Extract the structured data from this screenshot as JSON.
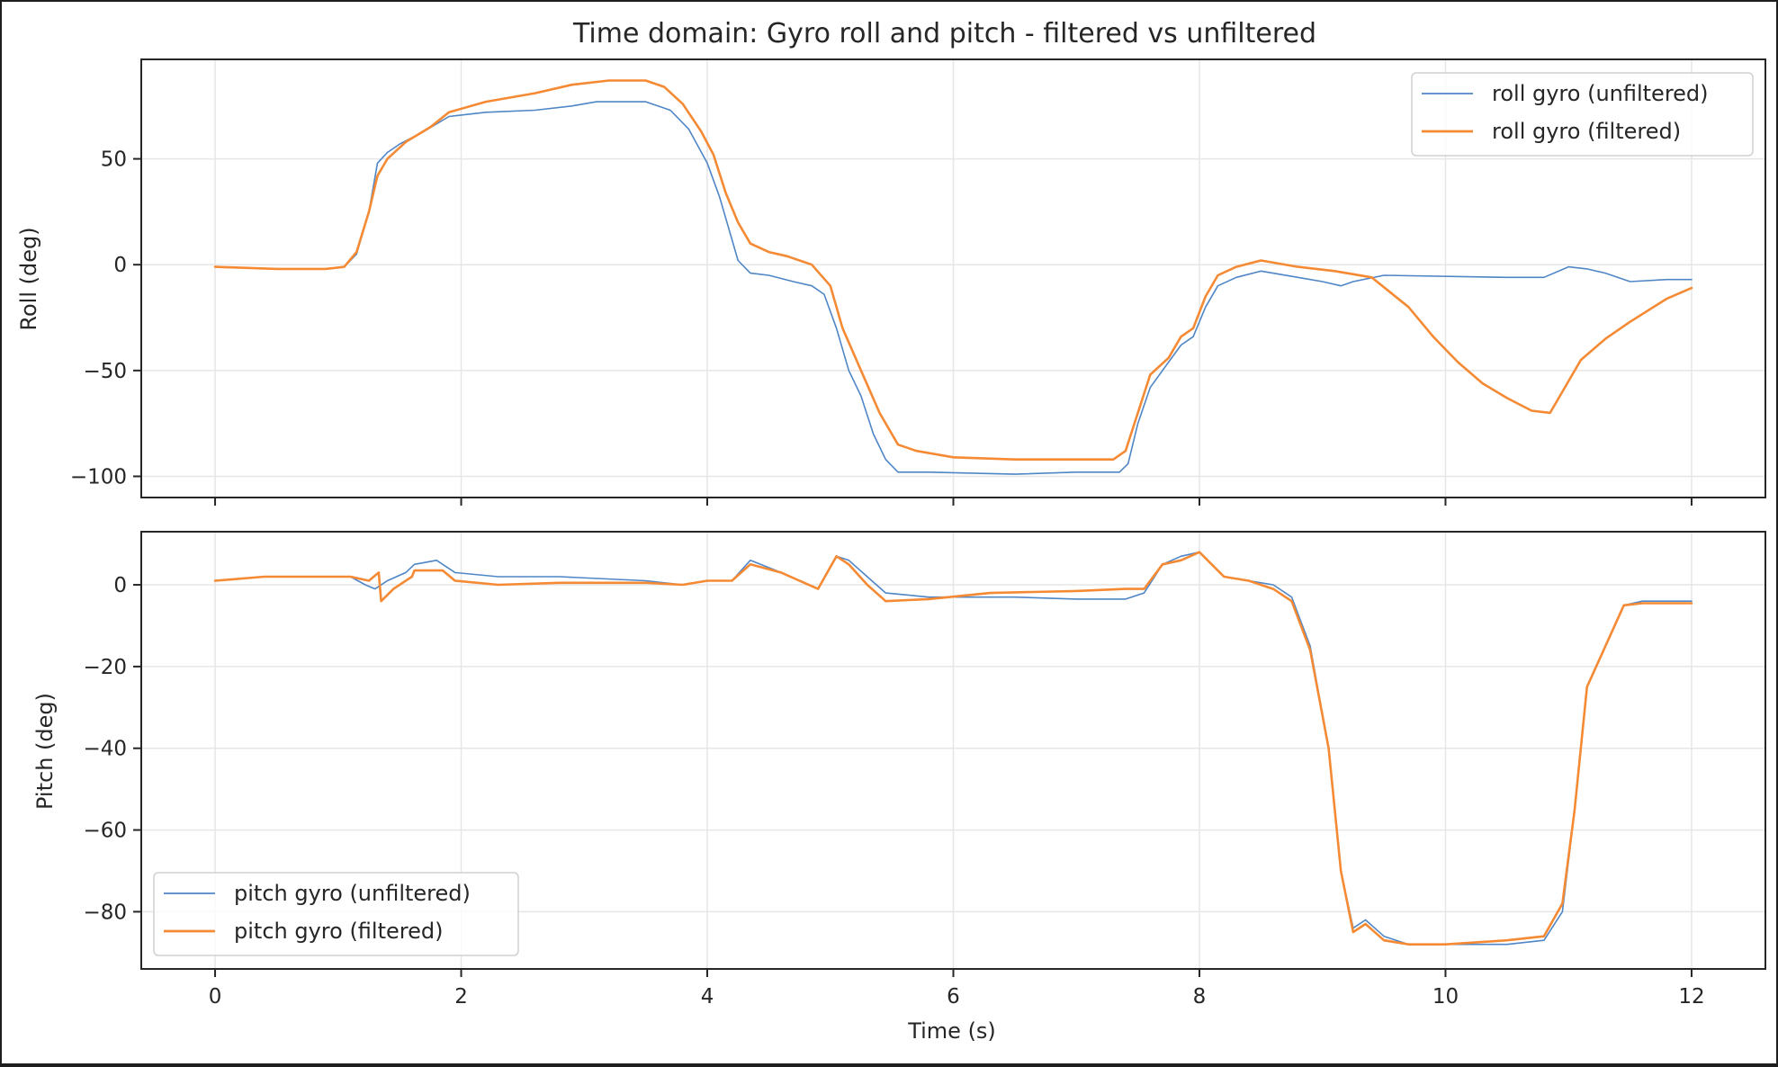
{
  "figure": {
    "title": "Time domain: Gyro roll and pitch - filtered vs unfiltered",
    "xlabel": "Time (s)",
    "colors": {
      "unfiltered": "#4f86c6",
      "filtered": "#f58a35"
    }
  },
  "chart_data": [
    {
      "type": "line",
      "title": "Time domain: Gyro roll and pitch - filtered vs unfiltered",
      "xlabel": "",
      "ylabel": "Roll (deg)",
      "xlim": [
        -0.6,
        12.6
      ],
      "ylim": [
        -110,
        97
      ],
      "xticks": [
        0,
        2,
        4,
        6,
        8,
        10,
        12
      ],
      "yticks": [
        -100,
        -50,
        0,
        50
      ],
      "ytick_labels": [
        "−100",
        "−50",
        "0",
        "50"
      ],
      "grid": true,
      "legend_position": "upper right",
      "series": [
        {
          "name": "roll gyro (unfiltered)",
          "color": "#4f86c6",
          "width": 1.6,
          "points": [
            [
              0,
              -1
            ],
            [
              0.5,
              -2
            ],
            [
              0.9,
              -2
            ],
            [
              1.05,
              -1
            ],
            [
              1.15,
              5
            ],
            [
              1.25,
              25
            ],
            [
              1.32,
              48
            ],
            [
              1.4,
              53
            ],
            [
              1.5,
              57
            ],
            [
              1.7,
              63
            ],
            [
              1.9,
              70
            ],
            [
              2.2,
              72
            ],
            [
              2.6,
              73
            ],
            [
              2.9,
              75
            ],
            [
              3.1,
              77
            ],
            [
              3.5,
              77
            ],
            [
              3.7,
              73
            ],
            [
              3.85,
              64
            ],
            [
              4.0,
              48
            ],
            [
              4.1,
              32
            ],
            [
              4.2,
              12
            ],
            [
              4.25,
              2
            ],
            [
              4.35,
              -4
            ],
            [
              4.5,
              -5
            ],
            [
              4.7,
              -8
            ],
            [
              4.85,
              -10
            ],
            [
              4.95,
              -14
            ],
            [
              5.05,
              -30
            ],
            [
              5.15,
              -50
            ],
            [
              5.25,
              -62
            ],
            [
              5.35,
              -80
            ],
            [
              5.45,
              -92
            ],
            [
              5.55,
              -98
            ],
            [
              5.8,
              -98
            ],
            [
              6.5,
              -99
            ],
            [
              7.0,
              -98
            ],
            [
              7.35,
              -98
            ],
            [
              7.42,
              -94
            ],
            [
              7.5,
              -75
            ],
            [
              7.6,
              -58
            ],
            [
              7.75,
              -46
            ],
            [
              7.85,
              -38
            ],
            [
              7.95,
              -34
            ],
            [
              8.05,
              -20
            ],
            [
              8.15,
              -10
            ],
            [
              8.3,
              -6
            ],
            [
              8.5,
              -3
            ],
            [
              8.8,
              -6
            ],
            [
              9.0,
              -8
            ],
            [
              9.15,
              -10
            ],
            [
              9.25,
              -8
            ],
            [
              9.5,
              -5
            ],
            [
              10.5,
              -6
            ],
            [
              10.8,
              -6
            ],
            [
              11.0,
              -1
            ],
            [
              11.15,
              -2
            ],
            [
              11.3,
              -4
            ],
            [
              11.5,
              -8
            ],
            [
              11.8,
              -7
            ],
            [
              12,
              -7
            ]
          ]
        },
        {
          "name": "roll gyro (filtered)",
          "color": "#f58a35",
          "width": 2.6,
          "points": [
            [
              0,
              -1
            ],
            [
              0.5,
              -2
            ],
            [
              0.9,
              -2
            ],
            [
              1.05,
              -1
            ],
            [
              1.15,
              6
            ],
            [
              1.25,
              25
            ],
            [
              1.32,
              42
            ],
            [
              1.4,
              50
            ],
            [
              1.55,
              58
            ],
            [
              1.75,
              65
            ],
            [
              1.9,
              72
            ],
            [
              2.2,
              77
            ],
            [
              2.6,
              81
            ],
            [
              2.9,
              85
            ],
            [
              3.2,
              87
            ],
            [
              3.5,
              87
            ],
            [
              3.65,
              84
            ],
            [
              3.8,
              76
            ],
            [
              3.95,
              63
            ],
            [
              4.05,
              52
            ],
            [
              4.15,
              34
            ],
            [
              4.25,
              20
            ],
            [
              4.35,
              10
            ],
            [
              4.5,
              6
            ],
            [
              4.65,
              4
            ],
            [
              4.85,
              0
            ],
            [
              5.0,
              -10
            ],
            [
              5.1,
              -30
            ],
            [
              5.25,
              -50
            ],
            [
              5.4,
              -70
            ],
            [
              5.55,
              -85
            ],
            [
              5.7,
              -88
            ],
            [
              6.0,
              -91
            ],
            [
              6.5,
              -92
            ],
            [
              7.0,
              -92
            ],
            [
              7.3,
              -92
            ],
            [
              7.4,
              -88
            ],
            [
              7.5,
              -70
            ],
            [
              7.6,
              -52
            ],
            [
              7.75,
              -44
            ],
            [
              7.85,
              -34
            ],
            [
              7.95,
              -30
            ],
            [
              8.05,
              -15
            ],
            [
              8.15,
              -5
            ],
            [
              8.3,
              -1
            ],
            [
              8.5,
              2
            ],
            [
              8.8,
              -1
            ],
            [
              9.1,
              -3
            ],
            [
              9.4,
              -6
            ],
            [
              9.7,
              -20
            ],
            [
              9.9,
              -34
            ],
            [
              10.1,
              -46
            ],
            [
              10.3,
              -56
            ],
            [
              10.5,
              -63
            ],
            [
              10.7,
              -69
            ],
            [
              10.85,
              -70
            ],
            [
              10.95,
              -60
            ],
            [
              11.1,
              -45
            ],
            [
              11.3,
              -35
            ],
            [
              11.5,
              -27
            ],
            [
              11.8,
              -16
            ],
            [
              12,
              -11
            ]
          ]
        }
      ]
    },
    {
      "type": "line",
      "xlabel": "Time (s)",
      "ylabel": "Pitch (deg)",
      "xlim": [
        -0.6,
        12.6
      ],
      "ylim": [
        -94,
        13
      ],
      "xticks": [
        0,
        2,
        4,
        6,
        8,
        10,
        12
      ],
      "xtick_labels": [
        "0",
        "2",
        "4",
        "6",
        "8",
        "10",
        "12"
      ],
      "yticks": [
        -80,
        -60,
        -40,
        -20,
        0
      ],
      "ytick_labels": [
        "−80",
        "−60",
        "−40",
        "−20",
        "0"
      ],
      "grid": true,
      "legend_position": "lower left",
      "series": [
        {
          "name": "pitch gyro (unfiltered)",
          "color": "#4f86c6",
          "width": 1.6,
          "points": [
            [
              0,
              1
            ],
            [
              0.4,
              2
            ],
            [
              0.8,
              2
            ],
            [
              1.1,
              2
            ],
            [
              1.22,
              0
            ],
            [
              1.3,
              -1
            ],
            [
              1.4,
              1
            ],
            [
              1.55,
              3
            ],
            [
              1.62,
              5
            ],
            [
              1.8,
              6
            ],
            [
              1.95,
              3
            ],
            [
              2.3,
              2
            ],
            [
              2.8,
              2
            ],
            [
              3.5,
              1
            ],
            [
              3.8,
              0
            ],
            [
              4.0,
              1
            ],
            [
              4.2,
              1
            ],
            [
              4.35,
              6
            ],
            [
              4.6,
              3
            ],
            [
              4.9,
              -1
            ],
            [
              5.05,
              7
            ],
            [
              5.15,
              6
            ],
            [
              5.3,
              2
            ],
            [
              5.45,
              -2
            ],
            [
              5.8,
              -3
            ],
            [
              6.5,
              -3
            ],
            [
              7.0,
              -3.5
            ],
            [
              7.4,
              -3.5
            ],
            [
              7.55,
              -2
            ],
            [
              7.7,
              5
            ],
            [
              7.85,
              7
            ],
            [
              8.0,
              8
            ],
            [
              8.2,
              2
            ],
            [
              8.4,
              1
            ],
            [
              8.6,
              0
            ],
            [
              8.75,
              -3
            ],
            [
              8.9,
              -15
            ],
            [
              9.05,
              -40
            ],
            [
              9.15,
              -70
            ],
            [
              9.25,
              -84
            ],
            [
              9.35,
              -82
            ],
            [
              9.5,
              -86
            ],
            [
              9.7,
              -88
            ],
            [
              10.0,
              -88
            ],
            [
              10.5,
              -88
            ],
            [
              10.8,
              -87
            ],
            [
              10.95,
              -80
            ],
            [
              11.05,
              -55
            ],
            [
              11.15,
              -25
            ],
            [
              11.3,
              -15
            ],
            [
              11.45,
              -5
            ],
            [
              11.6,
              -4
            ],
            [
              12,
              -4
            ]
          ]
        },
        {
          "name": "pitch gyro (filtered)",
          "color": "#f58a35",
          "width": 2.6,
          "points": [
            [
              0,
              1
            ],
            [
              0.4,
              2
            ],
            [
              0.8,
              2
            ],
            [
              1.1,
              2
            ],
            [
              1.25,
              1
            ],
            [
              1.33,
              3
            ],
            [
              1.35,
              -4
            ],
            [
              1.45,
              -1
            ],
            [
              1.6,
              2
            ],
            [
              1.62,
              3.5
            ],
            [
              1.85,
              3.5
            ],
            [
              1.95,
              1
            ],
            [
              2.3,
              0
            ],
            [
              2.8,
              0.5
            ],
            [
              3.5,
              0.5
            ],
            [
              3.8,
              0
            ],
            [
              4.0,
              1
            ],
            [
              4.2,
              1
            ],
            [
              4.35,
              5
            ],
            [
              4.6,
              3
            ],
            [
              4.9,
              -1
            ],
            [
              5.05,
              7
            ],
            [
              5.15,
              5
            ],
            [
              5.3,
              0
            ],
            [
              5.45,
              -4
            ],
            [
              5.8,
              -3.5
            ],
            [
              6.3,
              -2
            ],
            [
              7.0,
              -1.5
            ],
            [
              7.4,
              -1
            ],
            [
              7.55,
              -1
            ],
            [
              7.7,
              5
            ],
            [
              7.85,
              6
            ],
            [
              8.0,
              8
            ],
            [
              8.2,
              2
            ],
            [
              8.4,
              1
            ],
            [
              8.6,
              -1
            ],
            [
              8.75,
              -4
            ],
            [
              8.9,
              -16
            ],
            [
              9.05,
              -40
            ],
            [
              9.15,
              -70
            ],
            [
              9.25,
              -85
            ],
            [
              9.35,
              -83
            ],
            [
              9.5,
              -87
            ],
            [
              9.7,
              -88
            ],
            [
              10.0,
              -88
            ],
            [
              10.5,
              -87
            ],
            [
              10.8,
              -86
            ],
            [
              10.95,
              -78
            ],
            [
              11.05,
              -55
            ],
            [
              11.15,
              -25
            ],
            [
              11.3,
              -15
            ],
            [
              11.45,
              -5
            ],
            [
              11.6,
              -4.5
            ],
            [
              12,
              -4.5
            ]
          ]
        }
      ]
    }
  ]
}
